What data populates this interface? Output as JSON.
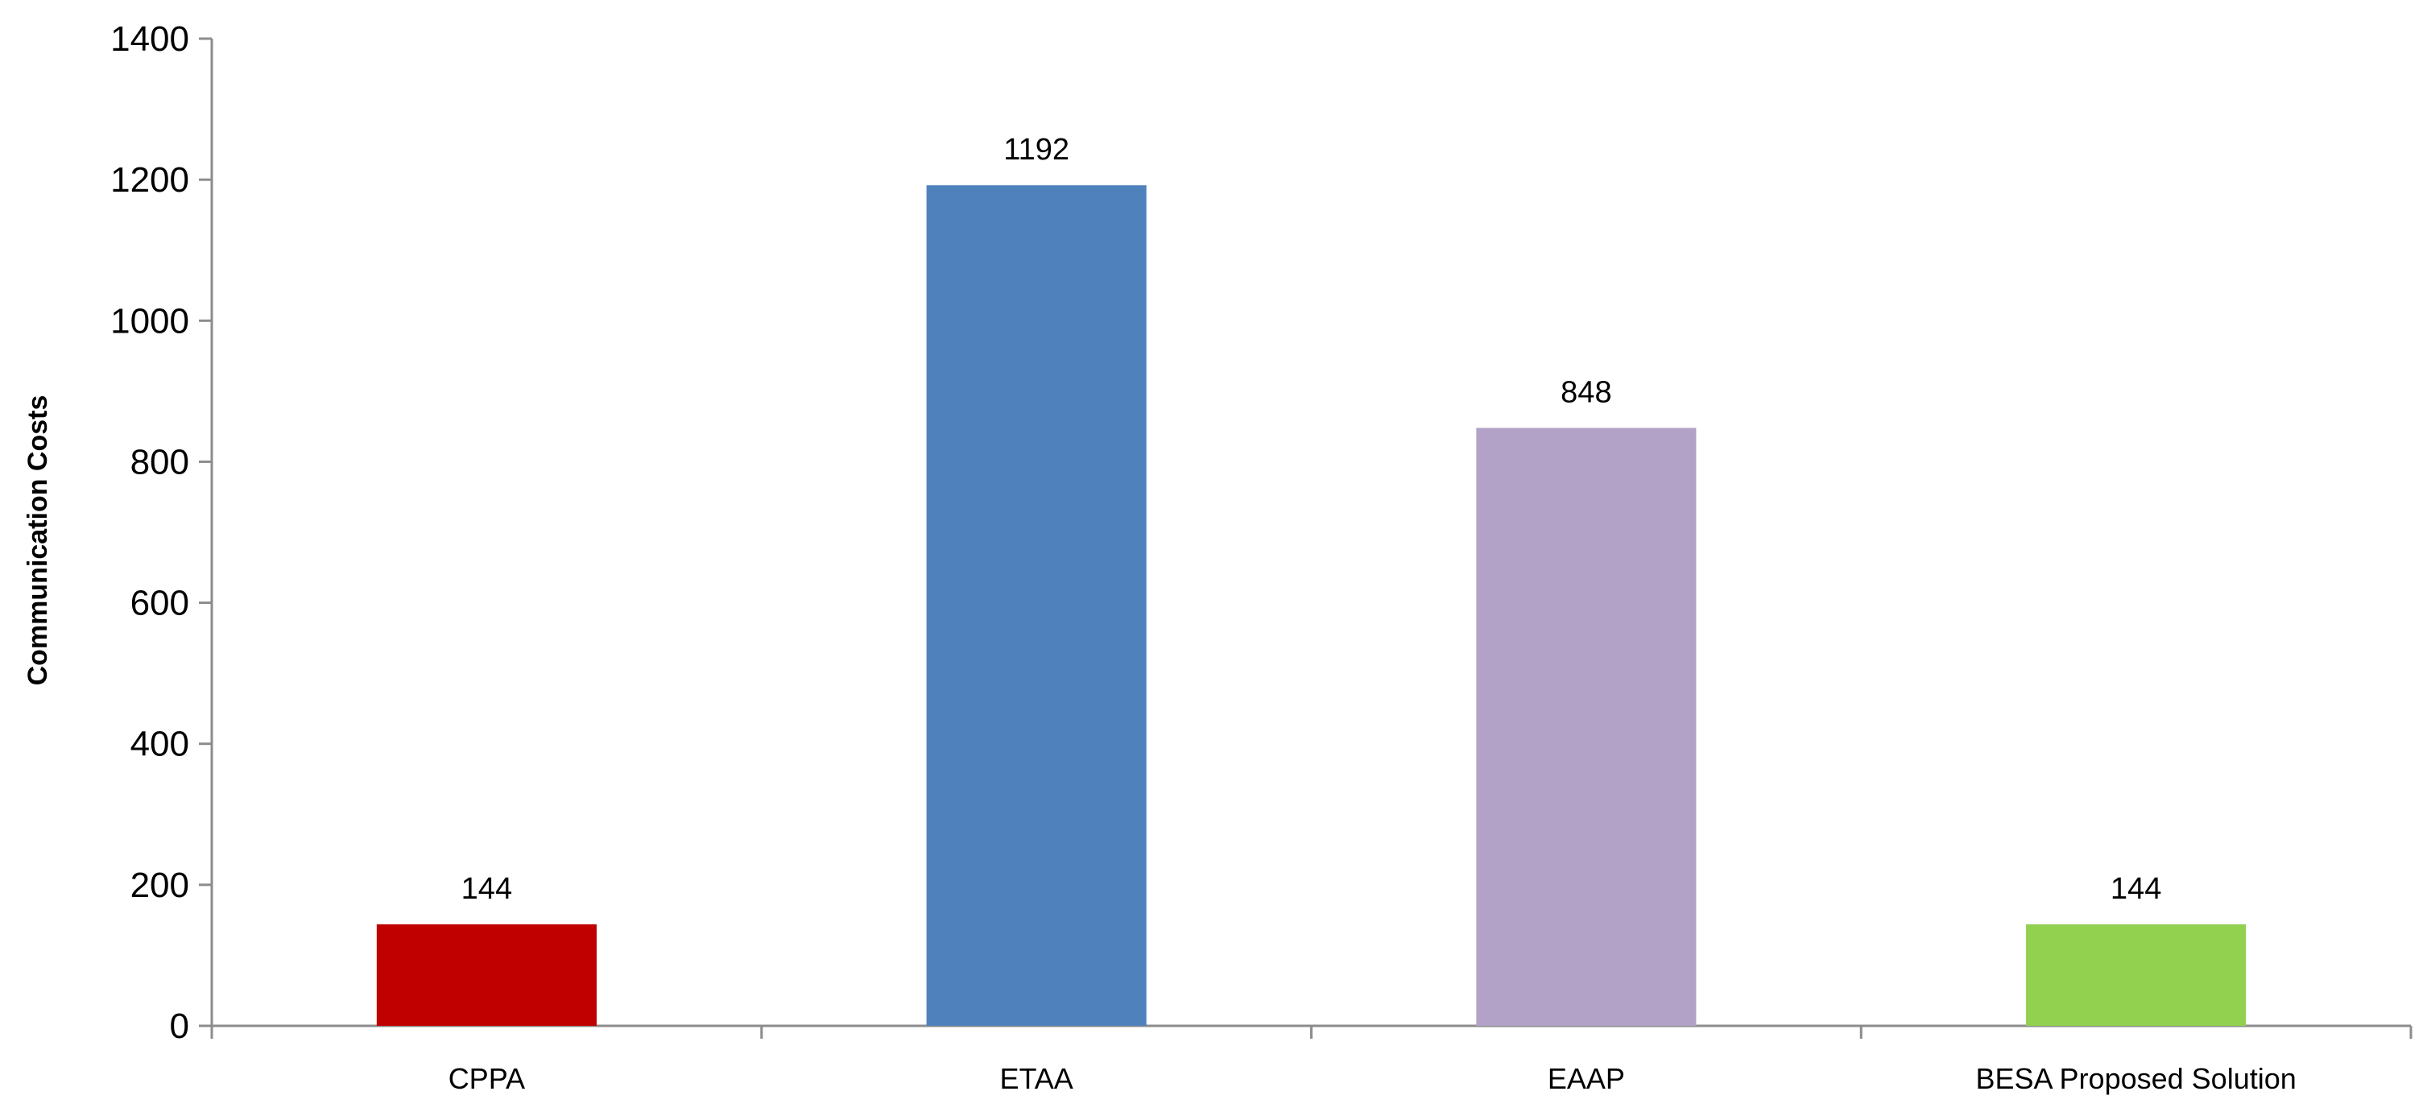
{
  "chart_data": {
    "type": "bar",
    "title": "",
    "xlabel": "",
    "ylabel": "Communication Costs",
    "categories": [
      "CPPA",
      "ETAA",
      "EAAP",
      "BESA Proposed Solution"
    ],
    "values": [
      144,
      1192,
      848,
      144
    ],
    "data_labels": [
      "144",
      "1192",
      "848",
      "144"
    ],
    "colors": [
      "#c00000",
      "#4f81bd",
      "#b2a2c7",
      "#92d050"
    ],
    "ylim": [
      0,
      1400
    ],
    "yticks": [
      0,
      200,
      400,
      600,
      800,
      1000,
      1200,
      1400
    ],
    "ytick_labels": [
      "0",
      "200",
      "400",
      "600",
      "800",
      "1000",
      "1200",
      "1400"
    ],
    "grid": false,
    "legend": "none"
  }
}
